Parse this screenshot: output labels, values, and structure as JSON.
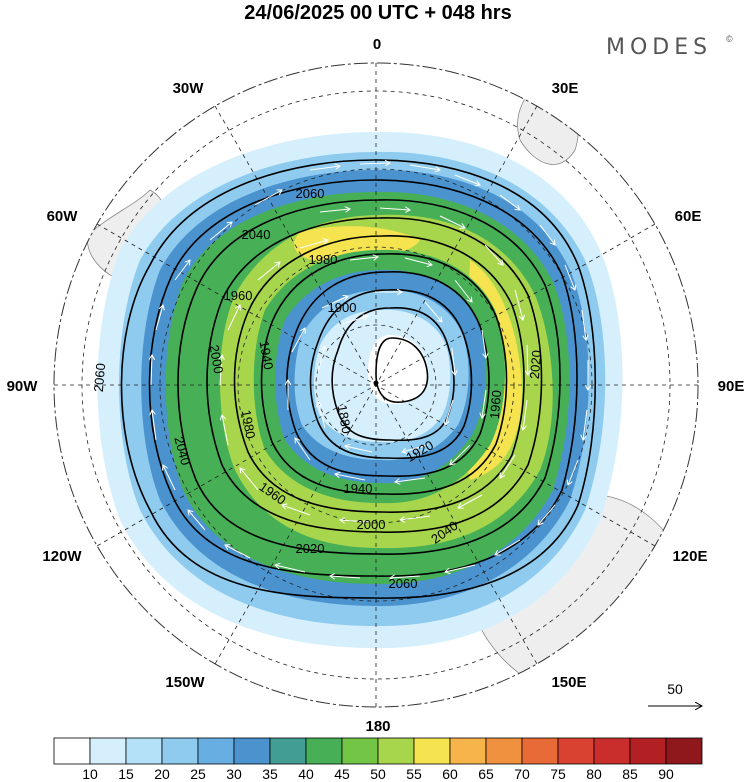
{
  "header": {
    "title": "24/06/2025  00 UTC  + 048 hrs",
    "brand": "MODES",
    "brand_mark": "©"
  },
  "map": {
    "projection": "south polar stereographic",
    "lon_labels": [
      "0",
      "30E",
      "60E",
      "90E",
      "120E",
      "150E",
      "180",
      "150W",
      "120W",
      "90W",
      "60W",
      "30W"
    ],
    "contour_labels": [
      "2060",
      "2040",
      "1980",
      "1960",
      "1900",
      "1940",
      "1880",
      "2020",
      "1960",
      "2000",
      "1920",
      "1940",
      "1980",
      "1960",
      "2000",
      "2040",
      "2060",
      "2040",
      "2060",
      "2020"
    ],
    "land_color": "#eeeeee"
  },
  "wind_reference": {
    "label": "50"
  },
  "colorbar": {
    "ticks": [
      "10",
      "15",
      "20",
      "25",
      "30",
      "35",
      "40",
      "45",
      "50",
      "55",
      "60",
      "65",
      "70",
      "75",
      "80",
      "85",
      "90"
    ],
    "colors": [
      "#ffffff",
      "#d5f0fc",
      "#b4e1f8",
      "#8ecbef",
      "#67afe3",
      "#4a93cf",
      "#429e95",
      "#47b056",
      "#73c545",
      "#a7d64d",
      "#f5e34f",
      "#f7b44a",
      "#f09140",
      "#e86a36",
      "#d94130",
      "#c92d2c",
      "#b22024",
      "#8f181c"
    ]
  }
}
